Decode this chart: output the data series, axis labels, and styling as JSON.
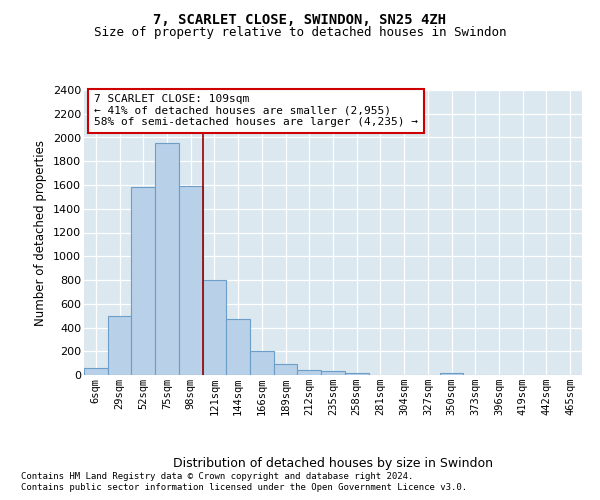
{
  "title": "7, SCARLET CLOSE, SWINDON, SN25 4ZH",
  "subtitle": "Size of property relative to detached houses in Swindon",
  "xlabel": "Distribution of detached houses by size in Swindon",
  "ylabel": "Number of detached properties",
  "categories": [
    "6sqm",
    "29sqm",
    "52sqm",
    "75sqm",
    "98sqm",
    "121sqm",
    "144sqm",
    "166sqm",
    "189sqm",
    "212sqm",
    "235sqm",
    "258sqm",
    "281sqm",
    "304sqm",
    "327sqm",
    "350sqm",
    "373sqm",
    "396sqm",
    "419sqm",
    "442sqm",
    "465sqm"
  ],
  "values": [
    60,
    500,
    1580,
    1950,
    1590,
    800,
    470,
    200,
    90,
    40,
    30,
    20,
    0,
    0,
    0,
    20,
    0,
    0,
    0,
    0,
    0
  ],
  "bar_color": "#b8d0e8",
  "bar_edge_color": "#6b9ec8",
  "vline_index": 4.5,
  "vline_color": "#990000",
  "annotation_text": "7 SCARLET CLOSE: 109sqm\n← 41% of detached houses are smaller (2,955)\n58% of semi-detached houses are larger (4,235) →",
  "annotation_box_color": "#ffffff",
  "annotation_box_edge": "#cc0000",
  "ylim": [
    0,
    2400
  ],
  "yticks": [
    0,
    200,
    400,
    600,
    800,
    1000,
    1200,
    1400,
    1600,
    1800,
    2000,
    2200,
    2400
  ],
  "footer1": "Contains HM Land Registry data © Crown copyright and database right 2024.",
  "footer2": "Contains public sector information licensed under the Open Government Licence v3.0.",
  "bg_color": "#dce8f0",
  "fig_bg_color": "#ffffff",
  "title_fontsize": 10,
  "subtitle_fontsize": 9
}
